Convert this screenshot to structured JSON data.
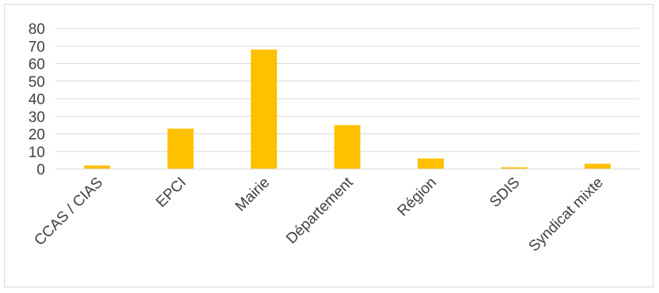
{
  "chart_data": {
    "type": "bar",
    "title": "",
    "xlabel": "",
    "ylabel": "",
    "categories": [
      "CCAS / CIAS",
      "EPCI",
      "Mairie",
      "Département",
      "Région",
      "SDIS",
      "Syndicat mixte"
    ],
    "values": [
      2,
      23,
      68,
      25,
      6,
      1,
      3
    ],
    "ylim": [
      0,
      80
    ],
    "yticks": [
      0,
      10,
      20,
      30,
      40,
      50,
      60,
      70,
      80
    ],
    "grid": true,
    "legend": "none",
    "bar_color": "#FFC000",
    "grid_color": "#D9D9D9"
  }
}
